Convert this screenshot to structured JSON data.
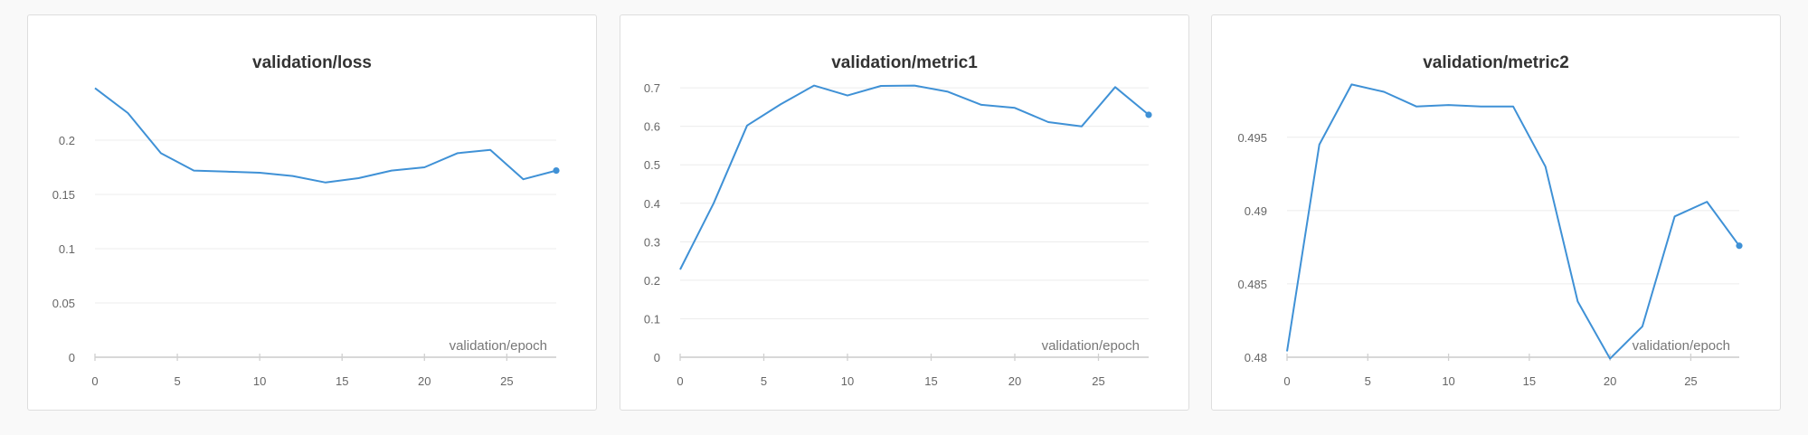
{
  "colors": {
    "series": "#3f91d6"
  },
  "chart_data": [
    {
      "type": "line",
      "title": "validation/loss",
      "xlabel": "validation/epoch",
      "ylabel": "",
      "xlim": [
        0,
        28
      ],
      "ylim": [
        0,
        0.25
      ],
      "x_ticks": [
        0,
        5,
        10,
        15,
        20,
        25
      ],
      "y_ticks": [
        0,
        0.05,
        0.1,
        0.15,
        0.2
      ],
      "grid": true,
      "series": [
        {
          "x": [
            0,
            2,
            4,
            6,
            8,
            10,
            12,
            14,
            16,
            18,
            20,
            22,
            24,
            26,
            28
          ],
          "y": [
            0.248,
            0.225,
            0.188,
            0.172,
            0.171,
            0.17,
            0.167,
            0.161,
            0.165,
            0.172,
            0.175,
            0.188,
            0.191,
            0.164,
            0.172
          ]
        }
      ]
    },
    {
      "type": "line",
      "title": "validation/metric1",
      "xlabel": "validation/epoch",
      "ylabel": "",
      "xlim": [
        0,
        28
      ],
      "ylim": [
        0,
        0.705
      ],
      "x_ticks": [
        0,
        5,
        10,
        15,
        20,
        25
      ],
      "y_ticks": [
        0,
        0.1,
        0.2,
        0.3,
        0.4,
        0.5,
        0.6,
        0.7
      ],
      "grid": true,
      "series": [
        {
          "x": [
            0,
            2,
            4,
            6,
            8,
            10,
            12,
            14,
            16,
            18,
            20,
            22,
            24,
            26,
            28
          ],
          "y": [
            0.228,
            0.4,
            0.602,
            0.657,
            0.706,
            0.68,
            0.705,
            0.706,
            0.69,
            0.656,
            0.648,
            0.611,
            0.6,
            0.702,
            0.63
          ]
        }
      ]
    },
    {
      "type": "line",
      "title": "validation/metric2",
      "xlabel": "validation/epoch",
      "ylabel": "",
      "xlim": [
        0,
        28
      ],
      "ylim": [
        0.48,
        0.4985
      ],
      "x_ticks": [
        0,
        5,
        10,
        15,
        20,
        25
      ],
      "y_ticks": [
        0.48,
        0.485,
        0.49,
        0.495
      ],
      "grid": true,
      "series": [
        {
          "x": [
            0,
            2,
            4,
            6,
            8,
            10,
            12,
            14,
            16,
            18,
            20,
            22,
            24,
            26,
            28
          ],
          "y": [
            0.4804,
            0.4945,
            0.4986,
            0.4981,
            0.4971,
            0.4972,
            0.4971,
            0.4971,
            0.493,
            0.4838,
            0.4799,
            0.4821,
            0.4896,
            0.4906,
            0.4876
          ]
        }
      ]
    }
  ]
}
